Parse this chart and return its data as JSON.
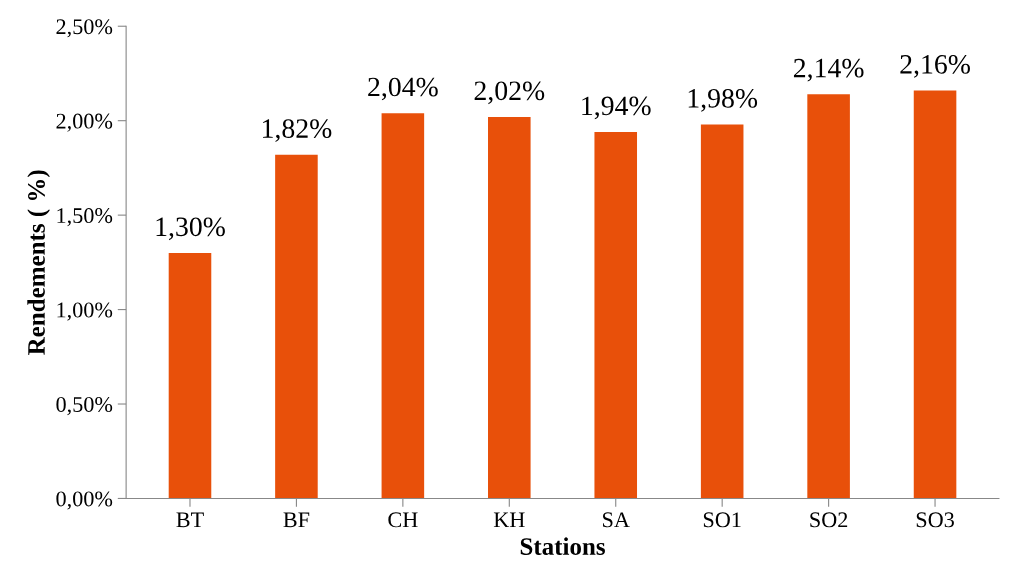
{
  "chart_data": {
    "type": "bar",
    "xlabel": "Stations",
    "ylabel": "Rendements ( %)",
    "categories": [
      "BT",
      "BF",
      "CH",
      "KH",
      "SA",
      "SO1",
      "SO2",
      "SO3"
    ],
    "values": [
      1.3,
      1.82,
      2.04,
      2.02,
      1.94,
      1.98,
      2.14,
      2.16
    ],
    "value_labels": [
      "1,30%",
      "1,82%",
      "2,04%",
      "2,02%",
      "1,94%",
      "1,98%",
      "2,14%",
      "2,16%"
    ],
    "color": "#e8500a",
    "ylim": [
      0,
      2.5
    ],
    "yticks": [
      {
        "value": 0,
        "label": "0,00%"
      },
      {
        "value": 0.5,
        "label": "0,50%"
      },
      {
        "value": 1.0,
        "label": "1,00%"
      },
      {
        "value": 1.5,
        "label": "1,50%"
      },
      {
        "value": 2.0,
        "label": "2,00%"
      },
      {
        "value": 2.5,
        "label": "2,50%"
      }
    ],
    "grid": false
  }
}
